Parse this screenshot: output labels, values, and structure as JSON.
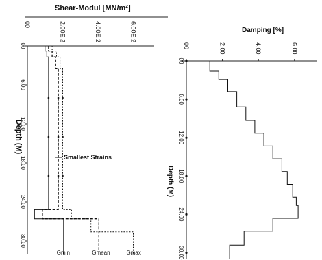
{
  "chart_data": [
    {
      "type": "line",
      "title": "Shear-Modul [MN/m²]",
      "ylabel": "Depth (M)",
      "x_tick_labels": [
        "00",
        "2.00E 2",
        "4.00E 2",
        "6.00E 2"
      ],
      "y_tick_labels": [
        "00",
        "6.00",
        "12.00",
        "18.00",
        "24.00",
        "30.00"
      ],
      "xlim": [
        0,
        650
      ],
      "ylim": [
        0,
        32
      ],
      "annotation": "Smallest Strains",
      "series": [
        {
          "name": "Gmin",
          "depth": [
            0,
            0.8,
            0.8,
            1.7,
            1.7,
            25.2,
            25.2,
            26.6,
            26.6,
            32
          ],
          "value": [
            100,
            100,
            110,
            110,
            120,
            120,
            40,
            40,
            205,
            205
          ]
        },
        {
          "name": "Gmean",
          "depth": [
            0,
            0.8,
            0.8,
            1.7,
            1.7,
            3.5,
            3.5,
            25.2,
            25.2,
            26.6,
            26.6,
            32
          ],
          "value": [
            120,
            120,
            140,
            140,
            160,
            160,
            175,
            175,
            85,
            85,
            405,
            405
          ]
        },
        {
          "name": "Gmax",
          "depth": [
            0,
            0.8,
            0.8,
            1.7,
            1.7,
            3.5,
            3.5,
            25.2,
            25.2,
            26.6,
            26.6,
            28.6,
            28.6,
            32
          ],
          "value": [
            140,
            140,
            165,
            165,
            185,
            185,
            200,
            200,
            250,
            250,
            360,
            360,
            600,
            600
          ]
        }
      ],
      "curve_labels": [
        "Gmin",
        "Gmean",
        "Gmax"
      ]
    },
    {
      "type": "line",
      "title": "Damping [%]",
      "ylabel": "Depth (M)",
      "x_tick_labels": [
        "00",
        "2.00",
        "4.00",
        "6.00"
      ],
      "y_tick_labels": [
        "00",
        "6.00",
        "12.00",
        "18.00",
        "24.00",
        "30.00"
      ],
      "xlim": [
        0,
        7
      ],
      "ylim": [
        0,
        31
      ],
      "series": [
        {
          "name": "Damping",
          "depth": [
            0,
            1.6,
            1.6,
            2.9,
            2.9,
            4.8,
            4.8,
            7.2,
            7.2,
            9.3,
            9.3,
            11.3,
            11.3,
            13.3,
            13.3,
            15.3,
            15.3,
            17.3,
            17.3,
            19.3,
            19.3,
            21.3,
            21.3,
            22.6,
            22.6,
            24.6,
            24.6,
            26.6,
            26.6,
            28.8,
            28.8,
            31
          ],
          "value": [
            1.3,
            1.3,
            1.8,
            1.8,
            2.3,
            2.3,
            2.8,
            2.8,
            3.3,
            3.3,
            3.8,
            3.8,
            4.3,
            4.3,
            4.8,
            4.8,
            5.3,
            5.3,
            5.6,
            5.6,
            5.9,
            5.9,
            6.1,
            6.1,
            6.2,
            6.2,
            4.8,
            4.8,
            3.2,
            3.2,
            2.4,
            2.4
          ]
        }
      ]
    }
  ]
}
